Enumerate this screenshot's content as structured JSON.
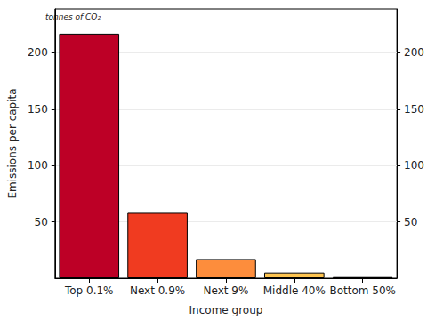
{
  "chart_data": {
    "type": "bar",
    "annotation": "tonnes of CO₂",
    "x_label": "Income group",
    "y_label": "Emissions per capita",
    "categories": [
      "Top 0.1%",
      "Next 0.9%",
      "Next 9%",
      "Middle 40%",
      "Bottom 50%"
    ],
    "values": [
      217,
      58,
      17,
      5,
      1
    ],
    "colors": [
      "#bd0026",
      "#f03b20",
      "#fd8d3c",
      "#fec44f",
      "#ffe68a"
    ],
    "ylim": [
      0,
      239
    ],
    "yticks": [
      50,
      100,
      150,
      200
    ],
    "grid": true
  }
}
